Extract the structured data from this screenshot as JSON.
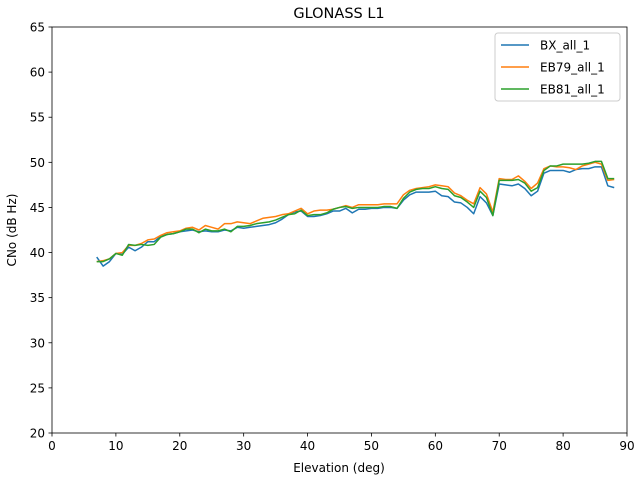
{
  "chart_data": {
    "type": "line",
    "title": "GLONASS L1",
    "xlabel": "Elevation (deg)",
    "ylabel": "CNo (dB Hz)",
    "xlim": [
      0,
      90
    ],
    "ylim": [
      20,
      65
    ],
    "xticks": [
      0,
      10,
      20,
      30,
      40,
      50,
      60,
      70,
      80,
      90
    ],
    "yticks": [
      20,
      25,
      30,
      35,
      40,
      45,
      50,
      55,
      60,
      65
    ],
    "grid": false,
    "legend_position": "top-right",
    "x": [
      7,
      8,
      9,
      10,
      11,
      12,
      13,
      14,
      15,
      16,
      17,
      18,
      19,
      20,
      21,
      22,
      23,
      24,
      25,
      26,
      27,
      28,
      29,
      30,
      31,
      32,
      33,
      34,
      35,
      36,
      37,
      38,
      39,
      40,
      41,
      42,
      43,
      44,
      45,
      46,
      47,
      48,
      49,
      50,
      51,
      52,
      53,
      54,
      55,
      56,
      57,
      58,
      59,
      60,
      61,
      62,
      63,
      64,
      65,
      66,
      67,
      68,
      69,
      70,
      71,
      72,
      73,
      74,
      75,
      76,
      77,
      78,
      79,
      80,
      81,
      82,
      83,
      84,
      85,
      86,
      87,
      88
    ],
    "series": [
      {
        "name": "BX_all_1",
        "color": "#1f77b4",
        "values": [
          39.5,
          38.5,
          39.0,
          39.9,
          39.8,
          40.6,
          40.2,
          40.6,
          41.2,
          41.2,
          41.8,
          42.0,
          42.1,
          42.3,
          42.4,
          42.5,
          42.3,
          42.4,
          42.3,
          42.3,
          42.5,
          42.4,
          42.8,
          42.7,
          42.8,
          42.9,
          43.0,
          43.1,
          43.3,
          43.7,
          44.2,
          44.5,
          44.6,
          44.0,
          44.0,
          44.1,
          44.3,
          44.6,
          44.6,
          44.9,
          44.4,
          44.8,
          44.8,
          44.9,
          44.9,
          45.0,
          45.0,
          44.9,
          45.8,
          46.4,
          46.7,
          46.7,
          46.7,
          46.8,
          46.3,
          46.2,
          45.6,
          45.5,
          45.0,
          44.3,
          46.2,
          45.5,
          44.1,
          47.6,
          47.5,
          47.4,
          47.6,
          47.1,
          46.3,
          46.8,
          48.8,
          49.1,
          49.1,
          49.1,
          48.9,
          49.2,
          49.3,
          49.3,
          49.5,
          49.5,
          47.4,
          47.2
        ]
      },
      {
        "name": "EB79_all_1",
        "color": "#ff7f0e",
        "values": [
          39.0,
          39.1,
          39.3,
          39.9,
          40.0,
          40.8,
          40.8,
          41.0,
          41.4,
          41.5,
          41.9,
          42.2,
          42.3,
          42.4,
          42.7,
          42.8,
          42.5,
          43.0,
          42.8,
          42.6,
          43.2,
          43.2,
          43.4,
          43.3,
          43.2,
          43.5,
          43.8,
          43.9,
          44.0,
          44.2,
          44.3,
          44.6,
          44.9,
          44.3,
          44.6,
          44.7,
          44.7,
          44.8,
          45.0,
          45.2,
          45.0,
          45.3,
          45.3,
          45.3,
          45.3,
          45.4,
          45.4,
          45.4,
          46.4,
          46.9,
          47.1,
          47.2,
          47.3,
          47.5,
          47.4,
          47.3,
          46.6,
          46.3,
          45.8,
          45.4,
          47.2,
          46.5,
          44.5,
          48.2,
          48.1,
          48.1,
          48.5,
          47.9,
          47.1,
          47.7,
          49.3,
          49.6,
          49.5,
          49.5,
          49.4,
          49.2,
          49.6,
          49.8,
          50.0,
          49.8,
          48.0,
          48.1
        ]
      },
      {
        "name": "EB81_all_1",
        "color": "#2ca02c",
        "values": [
          39.0,
          39.0,
          39.3,
          39.9,
          39.7,
          40.9,
          40.8,
          40.9,
          40.8,
          40.9,
          41.7,
          42.0,
          42.1,
          42.3,
          42.6,
          42.6,
          42.2,
          42.6,
          42.4,
          42.4,
          42.6,
          42.3,
          42.9,
          42.9,
          43.0,
          43.2,
          43.3,
          43.4,
          43.6,
          43.9,
          44.2,
          44.3,
          44.7,
          44.1,
          44.2,
          44.2,
          44.4,
          44.8,
          45.0,
          45.1,
          44.9,
          45.0,
          45.0,
          45.0,
          45.0,
          45.1,
          45.1,
          44.9,
          46.0,
          46.7,
          47.0,
          47.1,
          47.1,
          47.3,
          47.1,
          47.0,
          46.3,
          46.1,
          45.6,
          45.0,
          46.8,
          46.1,
          44.1,
          48.0,
          48.0,
          48.0,
          48.1,
          47.7,
          46.8,
          47.2,
          49.1,
          49.6,
          49.6,
          49.8,
          49.8,
          49.8,
          49.8,
          49.9,
          50.1,
          50.1,
          48.2,
          48.2
        ]
      }
    ]
  }
}
